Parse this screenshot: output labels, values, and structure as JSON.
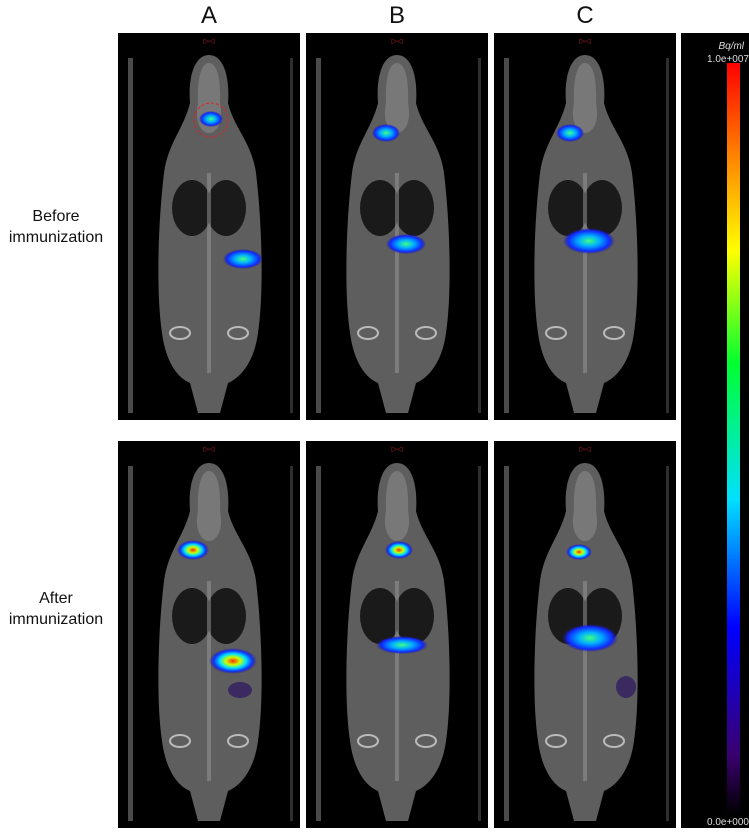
{
  "columns": [
    "A",
    "B",
    "C"
  ],
  "rows": [
    [
      "Before",
      "immunization"
    ],
    [
      "After",
      "immunization"
    ]
  ],
  "colorbar": {
    "unit": "Bq/ml",
    "max": "1.0e+007",
    "min": "0.0e+000"
  }
}
